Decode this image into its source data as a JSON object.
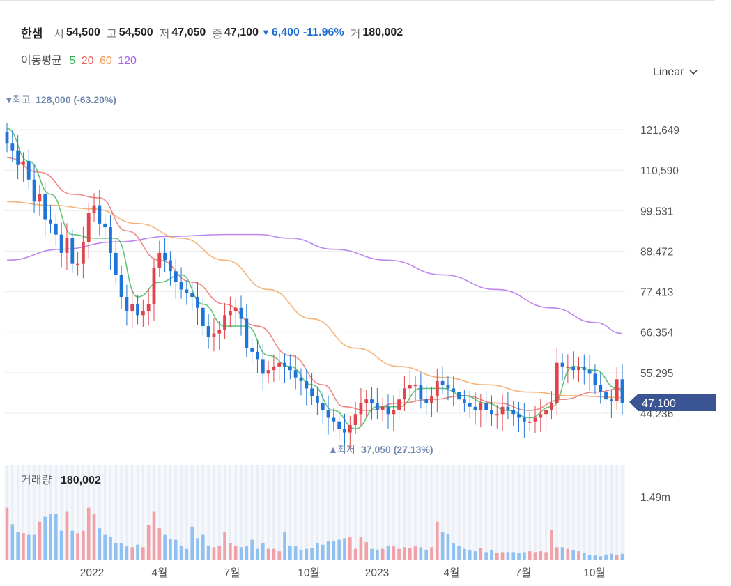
{
  "header": {
    "name": "한샘",
    "open_label": "시",
    "open": "54,500",
    "high_label": "고",
    "high": "54,500",
    "low_label": "저",
    "low": "47,050",
    "close_label": "종",
    "close": "47,100",
    "change": "6,400",
    "change_pct": "-11.96%",
    "volume_label": "거",
    "volume": "180,002"
  },
  "moving_average": {
    "title": "이동평균",
    "periods": [
      {
        "label": "5",
        "color": "#2fb24c"
      },
      {
        "label": "20",
        "color": "#e8605a"
      },
      {
        "label": "60",
        "color": "#f29a4a"
      },
      {
        "label": "120",
        "color": "#a560ea"
      }
    ]
  },
  "scale_selector": {
    "label": "Linear"
  },
  "annotations": {
    "high_label": "최고",
    "high_value": "128,000 (-63.20%)",
    "low_label": "최저",
    "low_value": "37,050 (27.13%)"
  },
  "current_price_tag": "47,100",
  "volume_panel": {
    "label": "거래량",
    "value": "180,002",
    "axis_tick": "1.49m"
  },
  "colors": {
    "up": "#e0434b",
    "down": "#1f74d8",
    "up_volume": "#f0a0a6",
    "down_volume": "#8fc0f0",
    "tag": "#3b5493"
  },
  "chart_data": {
    "type": "candlestick",
    "y_axis_ticks": [
      "121,649",
      "110,590",
      "99,531",
      "88,472",
      "77,413",
      "66,354",
      "55,295",
      "44,236"
    ],
    "ylim": [
      37050,
      128000
    ],
    "x_axis_ticks": [
      "2022",
      "4월",
      "7월",
      "10월",
      "2023",
      "4월",
      "7월",
      "10월"
    ],
    "close_points": [
      [
        0,
        118000
      ],
      [
        1,
        116000
      ],
      [
        2,
        112000
      ],
      [
        3,
        113000
      ],
      [
        4,
        108000
      ],
      [
        5,
        102000
      ],
      [
        6,
        104000
      ],
      [
        7,
        97000
      ],
      [
        8,
        96000
      ],
      [
        9,
        93000
      ],
      [
        10,
        88000
      ],
      [
        11,
        92000
      ],
      [
        12,
        85000
      ],
      [
        13,
        85000
      ],
      [
        14,
        91000
      ],
      [
        15,
        99000
      ],
      [
        16,
        101000
      ],
      [
        17,
        96000
      ],
      [
        18,
        95000
      ],
      [
        19,
        88000
      ],
      [
        20,
        82000
      ],
      [
        21,
        76000
      ],
      [
        22,
        72000
      ],
      [
        23,
        74000
      ],
      [
        24,
        71000
      ],
      [
        25,
        72000
      ],
      [
        26,
        74000
      ],
      [
        27,
        84000
      ],
      [
        28,
        88000
      ],
      [
        29,
        86000
      ],
      [
        30,
        83000
      ],
      [
        31,
        80000
      ],
      [
        32,
        78000
      ],
      [
        33,
        77000
      ],
      [
        34,
        76000
      ],
      [
        35,
        73000
      ],
      [
        36,
        68000
      ],
      [
        37,
        65000
      ],
      [
        38,
        66000
      ],
      [
        39,
        67000
      ],
      [
        40,
        71000
      ],
      [
        41,
        72000
      ],
      [
        42,
        73000
      ],
      [
        43,
        70000
      ],
      [
        44,
        62000
      ],
      [
        45,
        61000
      ],
      [
        46,
        59000
      ],
      [
        47,
        55000
      ],
      [
        48,
        56000
      ],
      [
        49,
        57000
      ],
      [
        50,
        58000
      ],
      [
        51,
        57000
      ],
      [
        52,
        56000
      ],
      [
        53,
        54000
      ],
      [
        54,
        53000
      ],
      [
        55,
        51000
      ],
      [
        56,
        49000
      ],
      [
        57,
        47000
      ],
      [
        58,
        45000
      ],
      [
        59,
        43000
      ],
      [
        60,
        42000
      ],
      [
        61,
        40000
      ],
      [
        62,
        39000
      ],
      [
        63,
        41000
      ],
      [
        64,
        44000
      ],
      [
        65,
        47000
      ],
      [
        66,
        48000
      ],
      [
        67,
        47000
      ],
      [
        68,
        45000
      ],
      [
        69,
        46000
      ],
      [
        70,
        44000
      ],
      [
        71,
        45000
      ],
      [
        72,
        48000
      ],
      [
        73,
        51000
      ],
      [
        74,
        52000
      ],
      [
        75,
        52000
      ],
      [
        76,
        48000
      ],
      [
        77,
        47000
      ],
      [
        78,
        49000
      ],
      [
        79,
        53000
      ],
      [
        80,
        52000
      ],
      [
        81,
        51000
      ],
      [
        82,
        50000
      ],
      [
        83,
        48000
      ],
      [
        84,
        47000
      ],
      [
        85,
        46000
      ],
      [
        86,
        45000
      ],
      [
        87,
        47000
      ],
      [
        88,
        45000
      ],
      [
        89,
        44000
      ],
      [
        90,
        44000
      ],
      [
        91,
        46000
      ],
      [
        92,
        45000
      ],
      [
        93,
        44000
      ],
      [
        94,
        43000
      ],
      [
        95,
        42000
      ],
      [
        96,
        42000
      ],
      [
        97,
        43000
      ],
      [
        98,
        44000
      ],
      [
        99,
        45000
      ],
      [
        100,
        47000
      ],
      [
        101,
        58000
      ],
      [
        102,
        57000
      ],
      [
        103,
        57000
      ],
      [
        104,
        56000
      ],
      [
        105,
        57000
      ],
      [
        106,
        56000
      ],
      [
        107,
        55000
      ],
      [
        108,
        52000
      ],
      [
        109,
        50000
      ],
      [
        110,
        48000
      ],
      [
        111,
        47500
      ],
      [
        112,
        53500
      ],
      [
        113,
        47100
      ]
    ],
    "ma5": [
      [
        0,
        122000
      ],
      [
        4,
        113000
      ],
      [
        8,
        104000
      ],
      [
        12,
        93000
      ],
      [
        16,
        92000
      ],
      [
        20,
        92000
      ],
      [
        24,
        76000
      ],
      [
        28,
        80000
      ],
      [
        32,
        82000
      ],
      [
        36,
        74000
      ],
      [
        40,
        68000
      ],
      [
        44,
        68000
      ],
      [
        48,
        60000
      ],
      [
        52,
        57000
      ],
      [
        56,
        52000
      ],
      [
        60,
        45000
      ],
      [
        64,
        40000
      ],
      [
        68,
        46000
      ],
      [
        72,
        46000
      ],
      [
        76,
        51000
      ],
      [
        80,
        51000
      ],
      [
        84,
        49000
      ],
      [
        88,
        47000
      ],
      [
        92,
        45000
      ],
      [
        96,
        43000
      ],
      [
        100,
        46000
      ],
      [
        104,
        57000
      ],
      [
        108,
        56000
      ],
      [
        112,
        51000
      ],
      [
        113,
        50000
      ]
    ],
    "ma20": [
      [
        0,
        114000
      ],
      [
        6,
        110000
      ],
      [
        12,
        104000
      ],
      [
        17,
        103000
      ],
      [
        22,
        94000
      ],
      [
        28,
        86000
      ],
      [
        34,
        80000
      ],
      [
        40,
        74000
      ],
      [
        46,
        68000
      ],
      [
        52,
        60000
      ],
      [
        58,
        52000
      ],
      [
        62,
        46000
      ],
      [
        66,
        45000
      ],
      [
        72,
        47000
      ],
      [
        78,
        48000
      ],
      [
        84,
        49000
      ],
      [
        90,
        47000
      ],
      [
        96,
        45000
      ],
      [
        102,
        48000
      ],
      [
        108,
        50000
      ],
      [
        113,
        51000
      ]
    ],
    "ma60": [
      [
        0,
        102000
      ],
      [
        8,
        101000
      ],
      [
        16,
        100000
      ],
      [
        24,
        96000
      ],
      [
        32,
        92000
      ],
      [
        40,
        86000
      ],
      [
        48,
        78000
      ],
      [
        56,
        70000
      ],
      [
        64,
        62000
      ],
      [
        72,
        57000
      ],
      [
        80,
        54000
      ],
      [
        88,
        52000
      ],
      [
        96,
        50000
      ],
      [
        104,
        49000
      ],
      [
        113,
        48500
      ]
    ],
    "ma120": [
      [
        0,
        86000
      ],
      [
        10,
        89000
      ],
      [
        20,
        91000
      ],
      [
        30,
        92500
      ],
      [
        40,
        93000
      ],
      [
        46,
        93000
      ],
      [
        52,
        92000
      ],
      [
        60,
        89000
      ],
      [
        70,
        86000
      ],
      [
        80,
        82000
      ],
      [
        90,
        78000
      ],
      [
        100,
        73000
      ],
      [
        108,
        69000
      ],
      [
        113,
        66000
      ]
    ],
    "volume": [
      [
        0,
        0.63
      ],
      [
        1,
        0.43
      ],
      [
        2,
        0.33
      ],
      [
        3,
        0.32
      ],
      [
        4,
        0.3
      ],
      [
        5,
        0.3
      ],
      [
        6,
        0.46
      ],
      [
        7,
        0.52
      ],
      [
        8,
        0.55
      ],
      [
        9,
        0.56
      ],
      [
        10,
        0.35
      ],
      [
        11,
        0.58
      ],
      [
        12,
        0.35
      ],
      [
        13,
        0.32
      ],
      [
        14,
        0.35
      ],
      [
        15,
        0.63
      ],
      [
        16,
        0.55
      ],
      [
        17,
        0.38
      ],
      [
        18,
        0.3
      ],
      [
        19,
        0.28
      ],
      [
        20,
        0.2
      ],
      [
        21,
        0.2
      ],
      [
        22,
        0.16
      ],
      [
        23,
        0.15
      ],
      [
        24,
        0.18
      ],
      [
        25,
        0.15
      ],
      [
        26,
        0.42
      ],
      [
        27,
        0.58
      ],
      [
        28,
        0.38
      ],
      [
        29,
        0.3
      ],
      [
        30,
        0.25
      ],
      [
        31,
        0.24
      ],
      [
        32,
        0.17
      ],
      [
        33,
        0.13
      ],
      [
        34,
        0.4
      ],
      [
        35,
        0.26
      ],
      [
        36,
        0.3
      ],
      [
        37,
        0.17
      ],
      [
        38,
        0.15
      ],
      [
        39,
        0.17
      ],
      [
        40,
        0.33
      ],
      [
        41,
        0.2
      ],
      [
        42,
        0.17
      ],
      [
        43,
        0.15
      ],
      [
        44,
        0.16
      ],
      [
        45,
        0.24
      ],
      [
        46,
        0.13
      ],
      [
        47,
        0.2
      ],
      [
        48,
        0.13
      ],
      [
        49,
        0.13
      ],
      [
        50,
        0.1
      ],
      [
        51,
        0.33
      ],
      [
        52,
        0.17
      ],
      [
        53,
        0.16
      ],
      [
        54,
        0.12
      ],
      [
        55,
        0.13
      ],
      [
        56,
        0.14
      ],
      [
        57,
        0.2
      ],
      [
        58,
        0.18
      ],
      [
        59,
        0.22
      ],
      [
        60,
        0.22
      ],
      [
        61,
        0.24
      ],
      [
        62,
        0.26
      ],
      [
        63,
        0.27
      ],
      [
        64,
        0.13
      ],
      [
        65,
        0.27
      ],
      [
        66,
        0.21
      ],
      [
        67,
        0.13
      ],
      [
        68,
        0.12
      ],
      [
        69,
        0.13
      ],
      [
        70,
        0.17
      ],
      [
        71,
        0.16
      ],
      [
        72,
        0.13
      ],
      [
        73,
        0.15
      ],
      [
        74,
        0.14
      ],
      [
        75,
        0.16
      ],
      [
        76,
        0.15
      ],
      [
        77,
        0.12
      ],
      [
        78,
        0.15
      ],
      [
        79,
        0.46
      ],
      [
        80,
        0.33
      ],
      [
        81,
        0.31
      ],
      [
        82,
        0.2
      ],
      [
        83,
        0.17
      ],
      [
        84,
        0.13
      ],
      [
        85,
        0.11
      ],
      [
        86,
        0.1
      ],
      [
        87,
        0.14
      ],
      [
        88,
        0.09
      ],
      [
        89,
        0.12
      ],
      [
        90,
        0.08
      ],
      [
        91,
        0.09
      ],
      [
        92,
        0.09
      ],
      [
        93,
        0.09
      ],
      [
        94,
        0.08
      ],
      [
        95,
        0.09
      ],
      [
        96,
        0.1
      ],
      [
        97,
        0.09
      ],
      [
        98,
        0.1
      ],
      [
        99,
        0.09
      ],
      [
        100,
        0.36
      ],
      [
        101,
        0.15
      ],
      [
        102,
        0.15
      ],
      [
        103,
        0.13
      ],
      [
        104,
        0.11
      ],
      [
        105,
        0.1
      ],
      [
        106,
        0.08
      ],
      [
        107,
        0.06
      ],
      [
        108,
        0.05
      ],
      [
        109,
        0.04
      ],
      [
        110,
        0.06
      ],
      [
        111,
        0.07
      ],
      [
        112,
        0.06
      ],
      [
        113,
        0.07
      ]
    ]
  }
}
